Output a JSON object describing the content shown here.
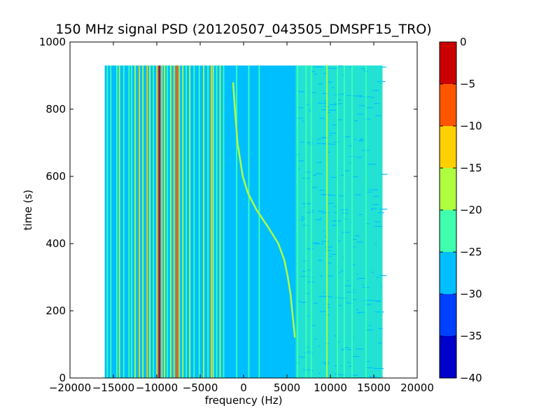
{
  "chart_data": {
    "type": "heatmap",
    "title": "150 MHz signal PSD (20120507_043505_DMSPF15_TRO)",
    "xlabel": "frequency (Hz)",
    "ylabel": "time (s)",
    "xlim": [
      -20000,
      20000
    ],
    "ylim": [
      0,
      1000
    ],
    "xticks": [
      -20000,
      -15000,
      -10000,
      -5000,
      0,
      5000,
      10000,
      15000,
      20000
    ],
    "xtick_labels": [
      "−20000",
      "−15000",
      "−10000",
      "−5000",
      "0",
      "5000",
      "10000",
      "15000",
      "20000"
    ],
    "yticks": [
      0,
      200,
      400,
      600,
      800,
      1000
    ],
    "ytick_labels": [
      "0",
      "200",
      "400",
      "600",
      "800",
      "1000"
    ],
    "data_extent": {
      "x": [
        -16000,
        16000
      ],
      "y": [
        0,
        930
      ]
    },
    "background_level_db": -27.5,
    "colorbar": {
      "levels": [
        -40,
        -35,
        -30,
        -25,
        -20,
        -15,
        -10,
        -5,
        0
      ],
      "tick_labels": [
        "−40",
        "−35",
        "−30",
        "−25",
        "−20",
        "−15",
        "−10",
        "−5",
        "0"
      ],
      "colors": [
        "#0000cc",
        "#0040ff",
        "#00bfff",
        "#40ffaf",
        "#afff40",
        "#ffd000",
        "#ff5500",
        "#cc0000"
      ]
    },
    "vertical_lines": [
      {
        "freq": -15700,
        "level_db": -22.5
      },
      {
        "freq": -15300,
        "level_db": -22.5
      },
      {
        "freq": -14600,
        "level_db": -22.5
      },
      {
        "freq": -14300,
        "level_db": -17.5
      },
      {
        "freq": -13800,
        "level_db": -22.5
      },
      {
        "freq": -13200,
        "level_db": -22.5
      },
      {
        "freq": -12900,
        "level_db": -22.5
      },
      {
        "freq": -12500,
        "level_db": -17.5
      },
      {
        "freq": -12000,
        "level_db": -12.5
      },
      {
        "freq": -11600,
        "level_db": -17.5
      },
      {
        "freq": -11100,
        "level_db": -12.5
      },
      {
        "freq": -10800,
        "level_db": -17.5
      },
      {
        "freq": -10400,
        "level_db": -22.5
      },
      {
        "freq": -10000,
        "level_db": -12.5
      },
      {
        "freq": -9700,
        "level_db": -2.5
      },
      {
        "freq": -9400,
        "level_db": -12.5
      },
      {
        "freq": -9100,
        "level_db": -17.5
      },
      {
        "freq": -8800,
        "level_db": -22.5
      },
      {
        "freq": -8400,
        "level_db": -17.5
      },
      {
        "freq": -8000,
        "level_db": -12.5
      },
      {
        "freq": -7700,
        "level_db": -7.5
      },
      {
        "freq": -7400,
        "level_db": -12.5
      },
      {
        "freq": -7000,
        "level_db": -17.5
      },
      {
        "freq": -6600,
        "level_db": -22.5
      },
      {
        "freq": -6200,
        "level_db": -17.5
      },
      {
        "freq": -5700,
        "level_db": -22.5
      },
      {
        "freq": -5100,
        "level_db": -22.5
      },
      {
        "freq": -4600,
        "level_db": -17.5
      },
      {
        "freq": -4100,
        "level_db": -22.5
      },
      {
        "freq": -3700,
        "level_db": -12.5
      },
      {
        "freq": -3500,
        "level_db": -17.5
      },
      {
        "freq": -3100,
        "level_db": -22.5
      },
      {
        "freq": -2700,
        "level_db": -17.5
      },
      {
        "freq": -2300,
        "level_db": -22.5
      },
      {
        "freq": -800,
        "level_db": -22.5
      },
      {
        "freq": 600,
        "level_db": -22.5
      },
      {
        "freq": 1800,
        "level_db": -22.5
      },
      {
        "freq": 6200,
        "level_db": -22.5
      },
      {
        "freq": 7200,
        "level_db": -22.5
      },
      {
        "freq": 7800,
        "level_db": -22.5
      },
      {
        "freq": 9600,
        "level_db": -17.5
      },
      {
        "freq": 10800,
        "level_db": -22.5
      },
      {
        "freq": 11600,
        "level_db": -22.5
      },
      {
        "freq": 12500,
        "level_db": -22.5
      },
      {
        "freq": 14100,
        "level_db": -22.5
      }
    ],
    "noise_region": {
      "x": [
        6000,
        16000
      ],
      "level_db": -22.5
    },
    "doppler_curve": {
      "level_db": -17.5,
      "points": [
        {
          "t": 880,
          "f": -1200
        },
        {
          "t": 800,
          "f": -1000
        },
        {
          "t": 700,
          "f": -700
        },
        {
          "t": 600,
          "f": -100
        },
        {
          "t": 550,
          "f": 500
        },
        {
          "t": 500,
          "f": 1500
        },
        {
          "t": 450,
          "f": 2800
        },
        {
          "t": 400,
          "f": 4000
        },
        {
          "t": 350,
          "f": 4700
        },
        {
          "t": 300,
          "f": 5100
        },
        {
          "t": 250,
          "f": 5400
        },
        {
          "t": 200,
          "f": 5600
        },
        {
          "t": 150,
          "f": 5800
        },
        {
          "t": 120,
          "f": 5900
        }
      ]
    }
  }
}
